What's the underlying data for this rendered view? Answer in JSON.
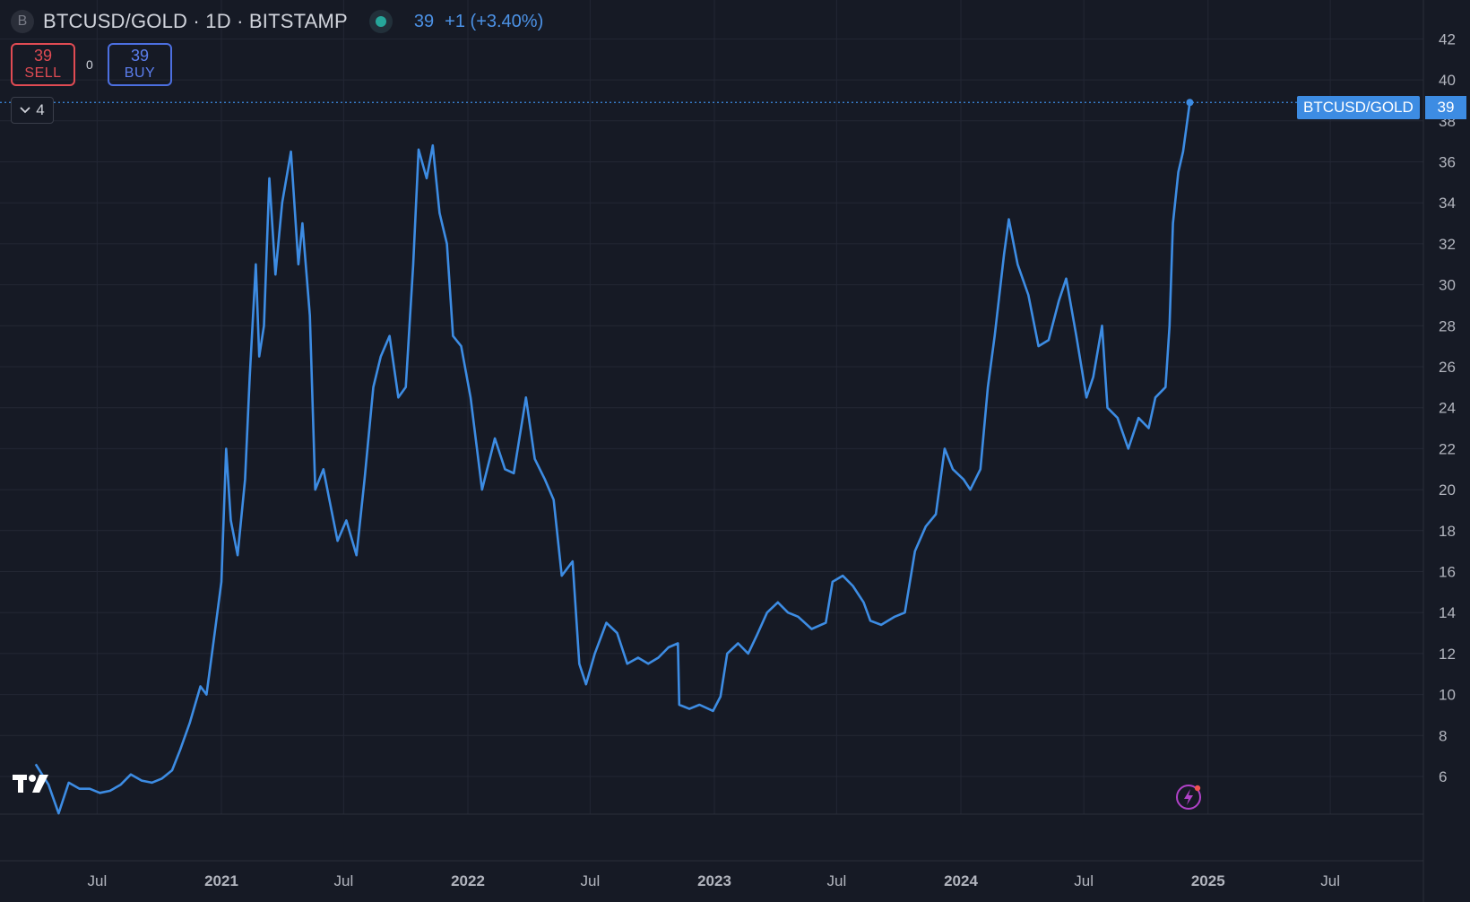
{
  "header": {
    "symbol_icon": "B",
    "title": "BTCUSD/GOLD · 1D · BITSTAMP",
    "price": "39",
    "change": "+1 (+3.40%)"
  },
  "trade": {
    "sell_value": "39",
    "sell_label": "SELL",
    "spread": "0",
    "buy_value": "39",
    "buy_label": "BUY"
  },
  "indicators": {
    "count": "4"
  },
  "price_tag": {
    "label": "BTCUSD/GOLD",
    "value": "39"
  },
  "colors": {
    "background": "#161a25",
    "line": "#3d8ce3",
    "grid": "#232734",
    "text": "#d1d4dc",
    "sell": "#e04b53",
    "buy": "#4c6fe0"
  },
  "icons": [
    "symbol-logo-icon",
    "status-dot-icon",
    "chevron-down-icon",
    "tradingview-logo-icon",
    "lightning-icon"
  ],
  "chart_data": {
    "type": "line",
    "series": [
      {
        "points": [
          [
            "2020-04-01",
            6.6
          ],
          [
            "2020-04-20",
            5.6
          ],
          [
            "2020-05-05",
            4.2
          ],
          [
            "2020-05-20",
            5.7
          ],
          [
            "2020-06-05",
            5.4
          ],
          [
            "2020-06-20",
            5.4
          ],
          [
            "2020-07-05",
            5.2
          ],
          [
            "2020-07-20",
            5.3
          ],
          [
            "2020-08-05",
            5.6
          ],
          [
            "2020-08-20",
            6.1
          ],
          [
            "2020-09-05",
            5.8
          ],
          [
            "2020-09-20",
            5.7
          ],
          [
            "2020-10-05",
            5.9
          ],
          [
            "2020-10-20",
            6.3
          ],
          [
            "2020-11-01",
            7.3
          ],
          [
            "2020-11-15",
            8.6
          ],
          [
            "2020-12-01",
            10.4
          ],
          [
            "2020-12-10",
            10.0
          ],
          [
            "2020-12-20",
            12.5
          ],
          [
            "2021-01-01",
            15.5
          ],
          [
            "2021-01-08",
            22.0
          ],
          [
            "2021-01-15",
            18.5
          ],
          [
            "2021-01-25",
            16.8
          ],
          [
            "2021-02-05",
            20.5
          ],
          [
            "2021-02-12",
            25.5
          ],
          [
            "2021-02-21",
            31.0
          ],
          [
            "2021-02-26",
            26.5
          ],
          [
            "2021-03-05",
            28.0
          ],
          [
            "2021-03-13",
            35.2
          ],
          [
            "2021-03-22",
            30.5
          ],
          [
            "2021-04-01",
            34.0
          ],
          [
            "2021-04-14",
            36.5
          ],
          [
            "2021-04-25",
            31.0
          ],
          [
            "2021-05-01",
            33.0
          ],
          [
            "2021-05-12",
            28.5
          ],
          [
            "2021-05-20",
            20.0
          ],
          [
            "2021-06-01",
            21.0
          ],
          [
            "2021-06-10",
            19.5
          ],
          [
            "2021-06-22",
            17.5
          ],
          [
            "2021-07-05",
            18.5
          ],
          [
            "2021-07-20",
            16.8
          ],
          [
            "2021-08-01",
            20.5
          ],
          [
            "2021-08-14",
            25.0
          ],
          [
            "2021-08-25",
            26.5
          ],
          [
            "2021-09-07",
            27.5
          ],
          [
            "2021-09-20",
            24.5
          ],
          [
            "2021-10-01",
            25.0
          ],
          [
            "2021-10-12",
            31.0
          ],
          [
            "2021-10-20",
            36.6
          ],
          [
            "2021-11-01",
            35.2
          ],
          [
            "2021-11-10",
            36.8
          ],
          [
            "2021-11-20",
            33.5
          ],
          [
            "2021-12-01",
            32.0
          ],
          [
            "2021-12-10",
            27.5
          ],
          [
            "2021-12-22",
            27.0
          ],
          [
            "2022-01-05",
            24.5
          ],
          [
            "2022-01-22",
            20.0
          ],
          [
            "2022-02-10",
            22.5
          ],
          [
            "2022-02-25",
            21.0
          ],
          [
            "2022-03-10",
            20.8
          ],
          [
            "2022-03-28",
            24.5
          ],
          [
            "2022-04-10",
            21.5
          ],
          [
            "2022-04-25",
            20.5
          ],
          [
            "2022-05-08",
            19.5
          ],
          [
            "2022-05-20",
            15.8
          ],
          [
            "2022-06-05",
            16.5
          ],
          [
            "2022-06-15",
            11.5
          ],
          [
            "2022-06-25",
            10.5
          ],
          [
            "2022-07-08",
            12.0
          ],
          [
            "2022-07-25",
            13.5
          ],
          [
            "2022-08-10",
            13.0
          ],
          [
            "2022-08-25",
            11.5
          ],
          [
            "2022-09-10",
            11.8
          ],
          [
            "2022-09-25",
            11.5
          ],
          [
            "2022-10-10",
            11.8
          ],
          [
            "2022-10-25",
            12.3
          ],
          [
            "2022-11-08",
            12.5
          ],
          [
            "2022-11-10",
            9.5
          ],
          [
            "2022-11-25",
            9.3
          ],
          [
            "2022-12-10",
            9.5
          ],
          [
            "2022-12-30",
            9.2
          ],
          [
            "2023-01-10",
            9.9
          ],
          [
            "2023-01-20",
            12.0
          ],
          [
            "2023-02-05",
            12.5
          ],
          [
            "2023-02-20",
            12.0
          ],
          [
            "2023-03-05",
            12.9
          ],
          [
            "2023-03-20",
            14.0
          ],
          [
            "2023-04-05",
            14.5
          ],
          [
            "2023-04-20",
            14.0
          ],
          [
            "2023-05-05",
            13.8
          ],
          [
            "2023-05-25",
            13.2
          ],
          [
            "2023-06-15",
            13.5
          ],
          [
            "2023-06-25",
            15.5
          ],
          [
            "2023-07-10",
            15.8
          ],
          [
            "2023-07-25",
            15.3
          ],
          [
            "2023-08-10",
            14.5
          ],
          [
            "2023-08-20",
            13.6
          ],
          [
            "2023-09-05",
            13.4
          ],
          [
            "2023-09-25",
            13.8
          ],
          [
            "2023-10-10",
            14.0
          ],
          [
            "2023-10-25",
            17.0
          ],
          [
            "2023-11-10",
            18.2
          ],
          [
            "2023-11-25",
            18.8
          ],
          [
            "2023-12-08",
            22.0
          ],
          [
            "2023-12-20",
            21.0
          ],
          [
            "2024-01-05",
            20.5
          ],
          [
            "2024-01-15",
            20.0
          ],
          [
            "2024-01-30",
            21.0
          ],
          [
            "2024-02-10",
            25.0
          ],
          [
            "2024-02-20",
            27.5
          ],
          [
            "2024-03-05",
            31.5
          ],
          [
            "2024-03-12",
            33.2
          ],
          [
            "2024-03-25",
            31.0
          ],
          [
            "2024-04-10",
            29.5
          ],
          [
            "2024-04-25",
            27.0
          ],
          [
            "2024-05-10",
            27.3
          ],
          [
            "2024-05-25",
            29.2
          ],
          [
            "2024-06-05",
            30.3
          ],
          [
            "2024-06-20",
            27.5
          ],
          [
            "2024-07-05",
            24.5
          ],
          [
            "2024-07-15",
            25.5
          ],
          [
            "2024-07-28",
            28.0
          ],
          [
            "2024-08-05",
            24.0
          ],
          [
            "2024-08-20",
            23.5
          ],
          [
            "2024-09-05",
            22.0
          ],
          [
            "2024-09-20",
            23.5
          ],
          [
            "2024-10-05",
            23.0
          ],
          [
            "2024-10-15",
            24.5
          ],
          [
            "2024-10-30",
            25.0
          ],
          [
            "2024-11-05",
            28.0
          ],
          [
            "2024-11-10",
            33.0
          ],
          [
            "2024-11-18",
            35.5
          ],
          [
            "2024-11-25",
            36.5
          ],
          [
            "2024-12-05",
            38.9
          ]
        ]
      }
    ],
    "x_ticks": [
      {
        "date": "2020-07-01",
        "label": "Jul"
      },
      {
        "date": "2021-01-01",
        "label": "2021"
      },
      {
        "date": "2021-07-01",
        "label": "Jul"
      },
      {
        "date": "2022-01-01",
        "label": "2022"
      },
      {
        "date": "2022-07-01",
        "label": "Jul"
      },
      {
        "date": "2023-01-01",
        "label": "2023"
      },
      {
        "date": "2023-07-01",
        "label": "Jul"
      },
      {
        "date": "2024-01-01",
        "label": "2024"
      },
      {
        "date": "2024-07-01",
        "label": "Jul"
      },
      {
        "date": "2025-01-01",
        "label": "2025"
      },
      {
        "date": "2025-07-01",
        "label": "Jul"
      }
    ],
    "y_ticks": [
      6,
      8,
      10,
      12,
      14,
      16,
      18,
      20,
      22,
      24,
      26,
      28,
      30,
      32,
      34,
      36,
      38,
      40,
      42
    ],
    "last_value": 38.9,
    "grid": true,
    "log_scale": false
  }
}
